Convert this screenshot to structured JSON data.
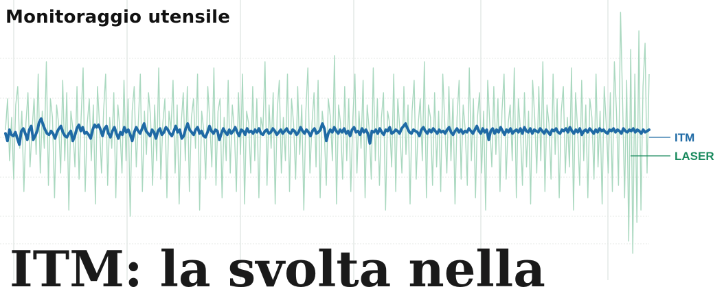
{
  "title": "Monitoraggio utensile",
  "headline": "ITM: la svolta nella",
  "colors": {
    "grid": "#e4e8e6",
    "itm": "#1f6aa5",
    "laser": "#a9d8bf",
    "legend_itm": "#1f6aa5",
    "legend_laser": "#1a8a5e",
    "title": "#111111"
  },
  "chart_data": {
    "type": "line",
    "title": "Monitoraggio utensile",
    "xlabel": "",
    "ylabel": "",
    "grid": true,
    "legend": "right",
    "xlim": [
      0,
      330
    ],
    "ylim": [
      -1,
      1
    ],
    "series": [
      {
        "name": "ITM",
        "values": [
          0.02,
          -0.04,
          0.05,
          0.01,
          0.0,
          0.03,
          -0.02,
          -0.07,
          0.04,
          0.06,
          0.02,
          -0.03,
          0.05,
          0.08,
          -0.03,
          0.0,
          0.04,
          0.11,
          0.14,
          0.09,
          0.05,
          0.02,
          0.01,
          0.04,
          0.02,
          -0.02,
          0.03,
          0.06,
          0.08,
          0.03,
          0.0,
          -0.01,
          0.02,
          0.04,
          -0.04,
          0.0,
          0.06,
          0.09,
          0.04,
          0.07,
          0.02,
          0.03,
          0.01,
          -0.02,
          0.05,
          0.09,
          0.07,
          0.09,
          0.05,
          0.0,
          0.06,
          0.08,
          0.02,
          -0.01,
          0.04,
          0.07,
          0.02,
          -0.02,
          0.03,
          0.01,
          0.07,
          0.03,
          0.05,
          0.01,
          -0.04,
          0.03,
          0.07,
          0.04,
          0.02,
          0.06,
          0.1,
          0.04,
          0.02,
          0.0,
          0.05,
          0.03,
          -0.02,
          0.04,
          0.06,
          0.01,
          0.03,
          0.07,
          0.05,
          0.02,
          0.0,
          0.04,
          0.08,
          0.03,
          0.05,
          -0.02,
          0.0,
          0.06,
          0.1,
          0.05,
          0.03,
          0.01,
          0.05,
          0.07,
          0.02,
          0.04,
          0.0,
          -0.01,
          0.03,
          0.08,
          0.04,
          0.02,
          0.05,
          0.04,
          -0.03,
          0.02,
          0.06,
          0.03,
          0.01,
          0.05,
          0.02,
          0.04,
          0.07,
          0.03,
          0.0,
          0.05,
          0.04,
          0.01,
          0.06,
          0.03,
          0.04,
          0.02,
          0.05,
          0.03,
          0.06,
          0.02,
          0.01,
          0.04,
          0.05,
          0.02,
          0.03,
          0.06,
          0.04,
          0.01,
          0.03,
          0.05,
          0.02,
          0.04,
          0.06,
          0.03,
          0.02,
          0.05,
          0.04,
          0.01,
          0.03,
          0.07,
          0.04,
          0.02,
          0.05,
          0.03,
          0.0,
          0.04,
          0.06,
          0.02,
          0.03,
          0.05,
          0.1,
          0.06,
          -0.04,
          0.02,
          0.05,
          0.03,
          0.07,
          0.04,
          0.02,
          0.05,
          0.03,
          0.06,
          0.02,
          0.04,
          0.0,
          0.05,
          0.07,
          0.03,
          0.04,
          0.01,
          0.06,
          0.03,
          0.05,
          0.02,
          -0.06,
          0.04,
          0.03,
          0.05,
          0.02,
          0.06,
          0.03,
          0.01,
          0.05,
          0.04,
          0.07,
          0.02,
          0.03,
          0.05,
          0.04,
          0.02,
          0.06,
          0.08,
          0.1,
          0.06,
          0.03,
          0.02,
          0.05,
          0.04,
          0.03,
          0.0,
          0.05,
          0.07,
          0.04,
          0.02,
          0.05,
          0.03,
          0.06,
          0.04,
          0.02,
          0.05,
          0.03,
          0.04,
          0.02,
          0.05,
          0.07,
          0.03,
          0.01,
          0.04,
          0.06,
          0.03,
          0.05,
          0.02,
          0.04,
          0.03,
          0.06,
          0.04,
          0.02,
          0.05,
          0.08,
          0.04,
          0.02,
          0.06,
          0.03,
          0.05,
          -0.03,
          0.04,
          0.06,
          0.02,
          0.05,
          0.03,
          0.07,
          0.04,
          0.01,
          0.05,
          0.03,
          0.06,
          0.02,
          0.04,
          0.05,
          0.03,
          0.06,
          0.02,
          0.07,
          0.04,
          0.03,
          0.06,
          0.02,
          0.05,
          0.04,
          0.03,
          0.06,
          0.04,
          0.02,
          0.05,
          0.03,
          0.01,
          0.05,
          0.04,
          0.06,
          0.03,
          0.02,
          0.05,
          0.04,
          0.06,
          0.03,
          0.07,
          0.04,
          0.02,
          0.05,
          0.03,
          0.06,
          0.01,
          0.04,
          0.05,
          0.03,
          0.06,
          0.04,
          0.02,
          0.05,
          0.03,
          0.06,
          0.04,
          0.05,
          0.03,
          0.02,
          0.05,
          0.04,
          0.06,
          0.03,
          0.05,
          0.04,
          0.02,
          0.06,
          0.04,
          0.03,
          0.05,
          0.04,
          0.06,
          0.03,
          0.05,
          0.04,
          0.02,
          0.05,
          0.03,
          0.04,
          0.05
        ]
      },
      {
        "name": "LASER",
        "values": [
          0.05,
          0.3,
          -0.2,
          0.15,
          -0.35,
          0.25,
          0.4,
          -0.1,
          0.2,
          -0.45,
          0.1,
          0.35,
          -0.25,
          0.05,
          0.3,
          -0.15,
          0.5,
          -0.3,
          0.2,
          -0.1,
          0.6,
          -0.4,
          0.3,
          0.15,
          -0.5,
          0.25,
          0.1,
          -0.3,
          0.45,
          -0.2,
          0.35,
          -0.6,
          0.2,
          0.05,
          -0.25,
          0.4,
          -0.35,
          0.15,
          0.55,
          -0.45,
          0.1,
          0.3,
          -0.2,
          0.25,
          -0.55,
          0.4,
          0.1,
          -0.3,
          0.2,
          0.5,
          -0.4,
          0.15,
          -0.1,
          0.35,
          -0.5,
          0.25,
          0.05,
          -0.3,
          0.45,
          -0.2,
          0.3,
          -0.65,
          0.2,
          0.4,
          -0.25,
          0.1,
          0.5,
          -0.45,
          0.2,
          -0.15,
          0.35,
          0.15,
          -0.4,
          0.25,
          -0.2,
          0.55,
          -0.35,
          0.1,
          0.3,
          -0.5,
          0.2,
          0.05,
          0.45,
          -0.3,
          0.25,
          -0.55,
          0.1,
          0.35,
          -0.2,
          0.4,
          -0.45,
          0.15,
          0.3,
          -0.1,
          0.5,
          -0.6,
          0.2,
          0.05,
          -0.35,
          0.4,
          0.1,
          -0.25,
          0.55,
          -0.4,
          0.2,
          0.3,
          -0.5,
          0.15,
          -0.2,
          0.45,
          -0.3,
          0.25,
          0.05,
          -0.45,
          0.35,
          -0.15,
          0.5,
          -0.55,
          0.2,
          0.1,
          -0.3,
          0.4,
          -0.2,
          0.3,
          -0.5,
          0.15,
          0.05,
          0.6,
          -0.4,
          0.25,
          -0.1,
          0.35,
          -0.55,
          0.2,
          0.45,
          -0.3,
          0.15,
          -0.2,
          0.5,
          -0.45,
          0.3,
          0.1,
          -0.35,
          0.4,
          -0.15,
          0.25,
          -0.6,
          0.2,
          0.55,
          -0.3,
          0.1,
          0.35,
          -0.25,
          0.45,
          -0.5,
          0.2,
          0.05,
          -0.4,
          0.3,
          0.15,
          -0.2,
          0.65,
          -0.55,
          0.25,
          0.1,
          -0.35,
          0.4,
          -0.2,
          0.3,
          -0.45,
          0.15,
          0.5,
          -0.3,
          0.2,
          -0.1,
          0.45,
          -0.5,
          0.25,
          0.05,
          -0.35,
          0.55,
          -0.2,
          0.3,
          -0.4,
          0.15,
          0.35,
          -0.6,
          0.2,
          0.1,
          -0.25,
          0.5,
          -0.45,
          0.3,
          0.05,
          -0.3,
          0.4,
          -0.15,
          0.25,
          -0.55,
          0.2,
          0.45,
          -0.35,
          0.1,
          0.3,
          -0.2,
          0.6,
          -0.5,
          0.25,
          0.15,
          -0.4,
          0.35,
          -0.25,
          0.2,
          -0.45,
          0.5,
          0.1,
          -0.3,
          0.4,
          -0.2,
          0.3,
          -0.55,
          0.15,
          0.45,
          -0.35,
          0.25,
          0.05,
          -0.4,
          0.55,
          -0.2,
          0.3,
          -0.5,
          0.15,
          0.35,
          -0.3,
          0.2,
          -0.6,
          0.45,
          0.1,
          -0.25,
          0.4,
          -0.15,
          0.3,
          -0.45,
          0.2,
          0.5,
          -0.35,
          0.1,
          0.25,
          -0.2,
          0.55,
          -0.5,
          0.3,
          0.05,
          -0.4,
          0.35,
          -0.25,
          0.2,
          -0.55,
          0.45,
          0.15,
          -0.3,
          0.4,
          -0.2,
          0.6,
          -0.45,
          0.25,
          0.1,
          -0.35,
          0.5,
          -0.15,
          0.3,
          -0.5,
          0.2,
          0.4,
          -0.3,
          0.15,
          -0.25,
          0.55,
          -0.6,
          0.35,
          0.05,
          -0.4,
          0.45,
          -0.2,
          0.25,
          -0.5,
          0.3,
          0.15,
          -0.35,
          0.5,
          -0.25,
          0.2,
          -0.55,
          0.4,
          0.1,
          -0.3,
          0.35,
          -0.45,
          0.6,
          0.2,
          -0.4,
          1.0,
          0.3,
          -0.5,
          0.45,
          -0.85,
          0.7,
          -0.95,
          0.5,
          -0.7,
          0.85,
          -0.6,
          0.4,
          0.75,
          -0.3,
          0.5
        ]
      }
    ]
  }
}
